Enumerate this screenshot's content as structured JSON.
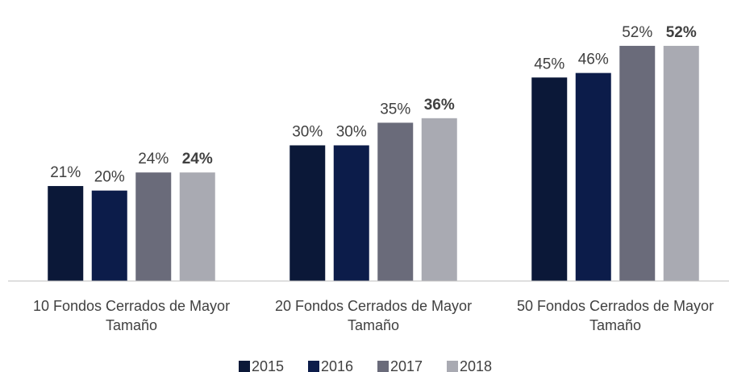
{
  "chart_data": {
    "type": "bar",
    "categories": [
      "10 Fondos Cerrados de Mayor Tamaño",
      "20 Fondos Cerrados de Mayor Tamaño",
      "50 Fondos Cerrados de Mayor Tamaño"
    ],
    "series": [
      {
        "name": "2015",
        "color": "#0b1838",
        "values": [
          21,
          30,
          45
        ],
        "value_labels": [
          "21%",
          "30%",
          "45%"
        ]
      },
      {
        "name": "2016",
        "color": "#0c1c4a",
        "values": [
          20,
          30,
          46
        ],
        "value_labels": [
          "20%",
          "30%",
          "46%"
        ]
      },
      {
        "name": "2017",
        "color": "#6a6b7a",
        "values": [
          24,
          35,
          52
        ],
        "value_labels": [
          "24%",
          "35%",
          "52%"
        ]
      },
      {
        "name": "2018",
        "color": "#a9aab2",
        "values": [
          24,
          36,
          52
        ],
        "value_labels": [
          "24%",
          "36%",
          "52%"
        ],
        "value_label_bold": true
      }
    ],
    "ylim": [
      0,
      60
    ],
    "legend": "bottom"
  }
}
